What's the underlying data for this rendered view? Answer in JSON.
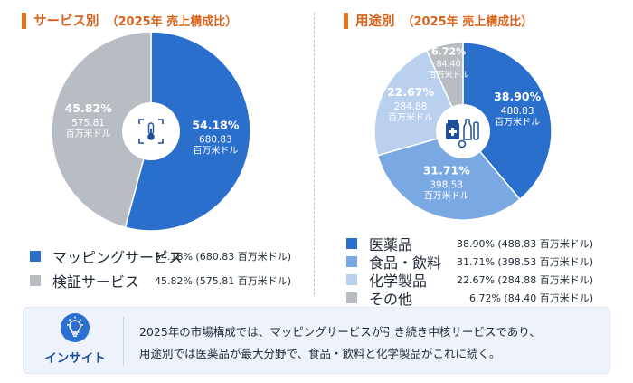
{
  "left_panel": {
    "title": "サービス別",
    "subtitle": "（2025年 売上構成比）"
  },
  "right_panel": {
    "title": "用途別",
    "subtitle": "（2025年 売上構成比）"
  },
  "chart_data": [
    {
      "type": "pie",
      "title": "サービス別（2025年 売上構成比）",
      "unit": "百万米ドル",
      "center_icon": "thermometer-sensor-icon",
      "slices": [
        {
          "label": "マッピングサービス",
          "percent": 54.18,
          "value": 680.83,
          "percent_text": "54.18%",
          "value_text": "680.83",
          "legend_value": "54.18% (680.83 百万米ドル)",
          "color": "#2b6fcd"
        },
        {
          "label": "検証サービス",
          "percent": 45.82,
          "value": 575.81,
          "percent_text": "45.82%",
          "value_text": "575.81",
          "legend_value": "45.82% (575.81 百万米ドル)",
          "color": "#b8bcc3"
        }
      ]
    },
    {
      "type": "pie",
      "title": "用途別（2025年 売上構成比）",
      "unit": "百万米ドル",
      "center_icon": "medicine-lab-icon",
      "slices": [
        {
          "label": "医薬品",
          "percent": 38.9,
          "value": 488.83,
          "percent_text": "38.90%",
          "value_text": "488.83",
          "legend_value": "38.90% (488.83 百万米ドル)",
          "color": "#2b6fcd"
        },
        {
          "label": "食品・飲料",
          "percent": 31.71,
          "value": 398.53,
          "percent_text": "31.71%",
          "value_text": "398.53",
          "legend_value": "31.71% (398.53 百万米ドル)",
          "color": "#7aa8e3"
        },
        {
          "label": "化学製品",
          "percent": 22.67,
          "value": 284.88,
          "percent_text": "22.67%",
          "value_text": "284.88",
          "legend_value": "22.67% (284.88 百万米ドル)",
          "color": "#b9d0ef"
        },
        {
          "label": "その他",
          "percent": 6.72,
          "value": 84.4,
          "percent_text": "6.72%",
          "value_text": "84.40",
          "legend_value": "6.72% (84.40 百万米ドル)",
          "color": "#b8bcc3"
        }
      ]
    }
  ],
  "insight": {
    "label": "インサイト",
    "line1": "2025年の市場構成では、マッピングサービスが引き続き中核サービスであり、",
    "line2": "用途別では医薬品が最大分野で、食品・飲料と化学製品がこれに続く。",
    "icon": "lightbulb-icon"
  }
}
